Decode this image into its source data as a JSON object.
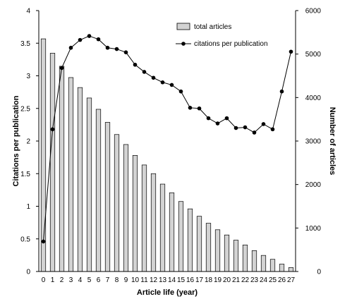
{
  "chart_data": {
    "type": "bar",
    "xlabel": "Article life (year)",
    "ylabel_left": "Citations per publication",
    "ylabel_right": "Number of articles",
    "categories": [
      "0",
      "1",
      "2",
      "3",
      "4",
      "5",
      "6",
      "7",
      "8",
      "9",
      "10",
      "11",
      "12",
      "13",
      "14",
      "15",
      "16",
      "17",
      "18",
      "19",
      "20",
      "21",
      "22",
      "23",
      "24",
      "25",
      "26",
      "27"
    ],
    "ylim_left": [
      0,
      4
    ],
    "yticks_left": [
      "0",
      "0.5",
      "1",
      "1.5",
      "2",
      "2.5",
      "3",
      "3.5",
      "4"
    ],
    "ylim_right": [
      0,
      6000
    ],
    "yticks_right": [
      "0",
      "1000",
      "2000",
      "3000",
      "4000",
      "5000",
      "6000"
    ],
    "legend_position": "top-right",
    "grid": false,
    "series": [
      {
        "name": "total articles",
        "type": "bar",
        "axis": "right",
        "color": "#d3d3d3",
        "values": [
          5350,
          5020,
          4720,
          4460,
          4230,
          3990,
          3730,
          3430,
          3150,
          2920,
          2670,
          2450,
          2250,
          2010,
          1810,
          1610,
          1440,
          1270,
          1110,
          960,
          840,
          720,
          610,
          480,
          370,
          280,
          170,
          90
        ]
      },
      {
        "name": "citations per publication",
        "type": "line",
        "axis": "left",
        "color": "#000000",
        "values": [
          0.46,
          2.18,
          3.12,
          3.43,
          3.55,
          3.61,
          3.56,
          3.43,
          3.41,
          3.36,
          3.17,
          3.06,
          2.97,
          2.9,
          2.86,
          2.76,
          2.51,
          2.5,
          2.35,
          2.27,
          2.35,
          2.2,
          2.21,
          2.13,
          2.26,
          2.18,
          2.76,
          3.37
        ]
      }
    ]
  }
}
